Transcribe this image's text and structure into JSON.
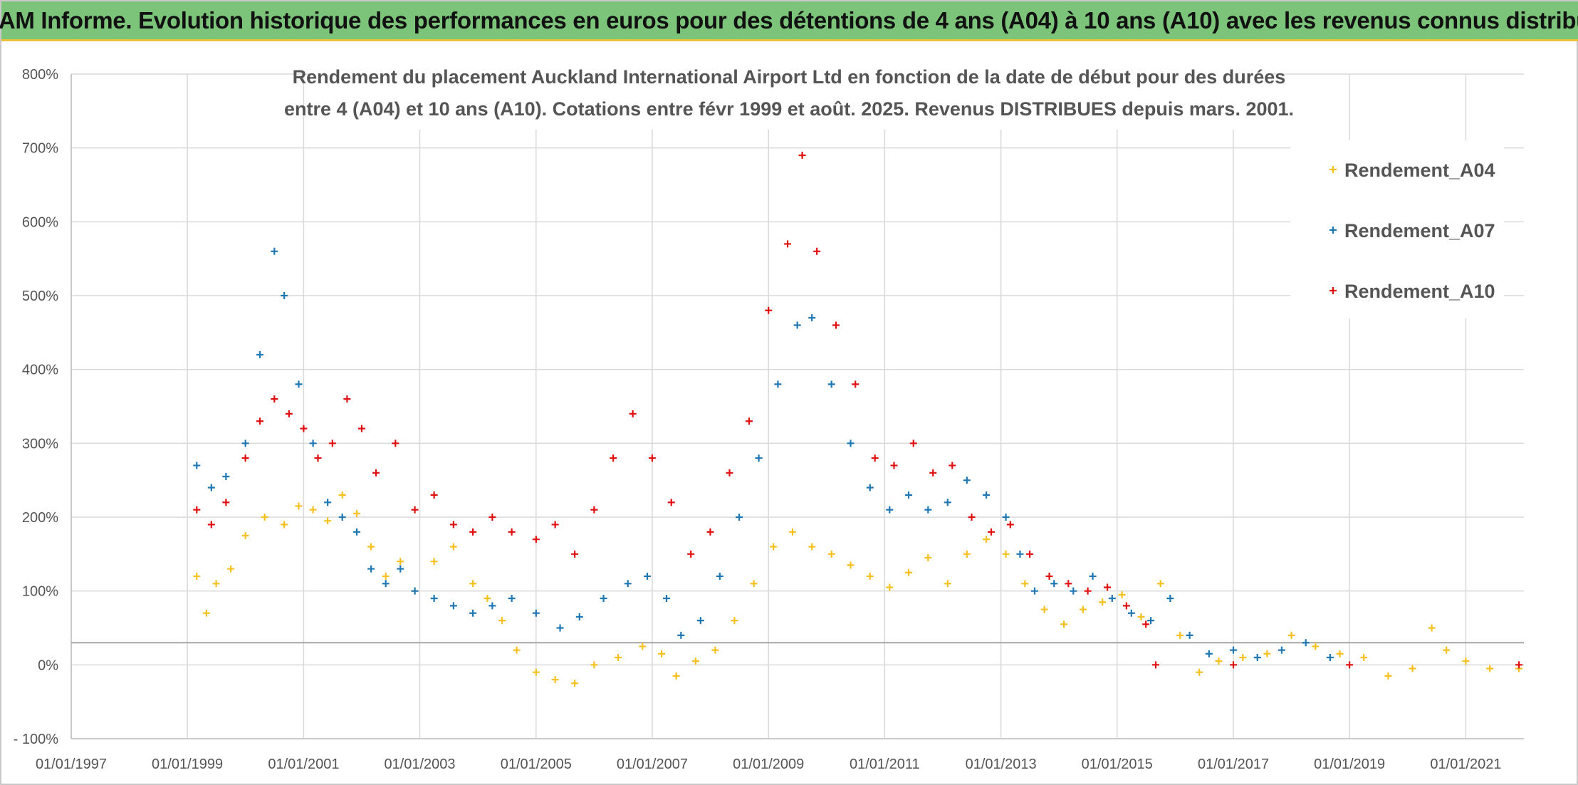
{
  "header": {
    "title": "ADAM Informe. Evolution historique des performances en euros pour des détentions de 4 ans (A04) à 10 ans (A10) avec les revenus connus distribués"
  },
  "chart_data": {
    "type": "scatter",
    "title_lines": [
      "Rendement du placement Auckland International Airport Ltd en fonction de la date de début pour des durées",
      "entre 4 (A04) et 10 ans (A10). Cotations entre févr 1999 et août. 2025. Revenus DISTRIBUES depuis mars. 2001."
    ],
    "xlabel": "",
    "ylabel": "",
    "x_ticks": [
      "01/01/1997",
      "01/01/1999",
      "01/01/2001",
      "01/01/2003",
      "01/01/2005",
      "01/01/2007",
      "01/01/2009",
      "01/01/2011",
      "01/01/2013",
      "01/01/2015",
      "01/01/2017",
      "01/01/2019",
      "01/01/2021"
    ],
    "y_ticks": [
      "- 100%",
      "0%",
      "100%",
      "200%",
      "300%",
      "400%",
      "500%",
      "600%",
      "700%",
      "800%"
    ],
    "xlim": [
      "1997-01-01",
      "2022-01-01"
    ],
    "ylim": [
      -100,
      800
    ],
    "reference_line_y": 30,
    "grid": true,
    "legend_position": "top-right",
    "series": [
      {
        "name": "Rendement_A04",
        "color": "#f5c020",
        "points": [
          [
            "1999-03-01",
            120
          ],
          [
            "1999-05-01",
            70
          ],
          [
            "1999-07-01",
            110
          ],
          [
            "1999-10-01",
            130
          ],
          [
            "2000-01-01",
            175
          ],
          [
            "2000-05-01",
            200
          ],
          [
            "2000-09-01",
            190
          ],
          [
            "2000-12-01",
            215
          ],
          [
            "2001-03-01",
            210
          ],
          [
            "2001-06-01",
            195
          ],
          [
            "2001-09-01",
            230
          ],
          [
            "2001-12-01",
            205
          ],
          [
            "2002-03-01",
            160
          ],
          [
            "2002-06-01",
            120
          ],
          [
            "2002-09-01",
            140
          ],
          [
            "2002-12-01",
            100
          ],
          [
            "2003-04-01",
            140
          ],
          [
            "2003-08-01",
            160
          ],
          [
            "2003-12-01",
            110
          ],
          [
            "2004-03-01",
            90
          ],
          [
            "2004-06-01",
            60
          ],
          [
            "2004-09-01",
            20
          ],
          [
            "2005-01-01",
            -10
          ],
          [
            "2005-05-01",
            -20
          ],
          [
            "2005-09-01",
            -25
          ],
          [
            "2006-01-01",
            0
          ],
          [
            "2006-06-01",
            10
          ],
          [
            "2006-11-01",
            25
          ],
          [
            "2007-03-01",
            15
          ],
          [
            "2007-06-01",
            -15
          ],
          [
            "2007-10-01",
            5
          ],
          [
            "2008-02-01",
            20
          ],
          [
            "2008-06-01",
            60
          ],
          [
            "2008-10-01",
            110
          ],
          [
            "2009-02-01",
            160
          ],
          [
            "2009-06-01",
            180
          ],
          [
            "2009-10-01",
            160
          ],
          [
            "2010-02-01",
            150
          ],
          [
            "2010-06-01",
            135
          ],
          [
            "2010-10-01",
            120
          ],
          [
            "2011-02-01",
            105
          ],
          [
            "2011-06-01",
            125
          ],
          [
            "2011-10-01",
            145
          ],
          [
            "2012-02-01",
            110
          ],
          [
            "2012-06-01",
            150
          ],
          [
            "2012-10-01",
            170
          ],
          [
            "2013-02-01",
            150
          ],
          [
            "2013-06-01",
            110
          ],
          [
            "2013-10-01",
            75
          ],
          [
            "2014-02-01",
            55
          ],
          [
            "2014-06-01",
            75
          ],
          [
            "2014-10-01",
            85
          ],
          [
            "2015-02-01",
            95
          ],
          [
            "2015-06-01",
            65
          ],
          [
            "2015-10-01",
            110
          ],
          [
            "2016-02-01",
            40
          ],
          [
            "2016-06-01",
            -10
          ],
          [
            "2016-10-01",
            5
          ],
          [
            "2017-03-01",
            10
          ],
          [
            "2017-08-01",
            15
          ],
          [
            "2018-01-01",
            40
          ],
          [
            "2018-06-01",
            25
          ],
          [
            "2018-11-01",
            15
          ],
          [
            "2019-04-01",
            10
          ],
          [
            "2019-09-01",
            -15
          ],
          [
            "2020-02-01",
            -5
          ],
          [
            "2020-06-01",
            50
          ],
          [
            "2020-09-01",
            20
          ],
          [
            "2021-01-01",
            5
          ],
          [
            "2021-06-01",
            -5
          ],
          [
            "2021-12-01",
            -5
          ]
        ]
      },
      {
        "name": "Rendement_A07",
        "color": "#1f77b4",
        "points": [
          [
            "1999-03-01",
            270
          ],
          [
            "1999-06-01",
            240
          ],
          [
            "1999-09-01",
            255
          ],
          [
            "2000-01-01",
            300
          ],
          [
            "2000-04-01",
            420
          ],
          [
            "2000-07-01",
            560
          ],
          [
            "2000-09-01",
            500
          ],
          [
            "2000-12-01",
            380
          ],
          [
            "2001-03-01",
            300
          ],
          [
            "2001-06-01",
            220
          ],
          [
            "2001-09-01",
            200
          ],
          [
            "2001-12-01",
            180
          ],
          [
            "2002-03-01",
            130
          ],
          [
            "2002-06-01",
            110
          ],
          [
            "2002-09-01",
            130
          ],
          [
            "2002-12-01",
            100
          ],
          [
            "2003-04-01",
            90
          ],
          [
            "2003-08-01",
            80
          ],
          [
            "2003-12-01",
            70
          ],
          [
            "2004-04-01",
            80
          ],
          [
            "2004-08-01",
            90
          ],
          [
            "2005-01-01",
            70
          ],
          [
            "2005-06-01",
            50
          ],
          [
            "2005-10-01",
            65
          ],
          [
            "2006-03-01",
            90
          ],
          [
            "2006-08-01",
            110
          ],
          [
            "2006-12-01",
            120
          ],
          [
            "2007-04-01",
            90
          ],
          [
            "2007-07-01",
            40
          ],
          [
            "2007-11-01",
            60
          ],
          [
            "2008-03-01",
            120
          ],
          [
            "2008-07-01",
            200
          ],
          [
            "2008-11-01",
            280
          ],
          [
            "2009-03-01",
            380
          ],
          [
            "2009-07-01",
            460
          ],
          [
            "2009-10-01",
            470
          ],
          [
            "2010-02-01",
            380
          ],
          [
            "2010-06-01",
            300
          ],
          [
            "2010-10-01",
            240
          ],
          [
            "2011-02-01",
            210
          ],
          [
            "2011-06-01",
            230
          ],
          [
            "2011-10-01",
            210
          ],
          [
            "2012-02-01",
            220
          ],
          [
            "2012-06-01",
            250
          ],
          [
            "2012-10-01",
            230
          ],
          [
            "2013-02-01",
            200
          ],
          [
            "2013-05-01",
            150
          ],
          [
            "2013-08-01",
            100
          ],
          [
            "2013-12-01",
            110
          ],
          [
            "2014-04-01",
            100
          ],
          [
            "2014-08-01",
            120
          ],
          [
            "2014-12-01",
            90
          ],
          [
            "2015-04-01",
            70
          ],
          [
            "2015-08-01",
            60
          ],
          [
            "2015-12-01",
            90
          ],
          [
            "2016-04-01",
            40
          ],
          [
            "2016-08-01",
            15
          ],
          [
            "2017-01-01",
            20
          ],
          [
            "2017-06-01",
            10
          ],
          [
            "2017-11-01",
            20
          ],
          [
            "2018-04-01",
            30
          ],
          [
            "2018-09-01",
            10
          ]
        ]
      },
      {
        "name": "Rendement_A10",
        "color": "#e01010",
        "points": [
          [
            "1999-03-01",
            210
          ],
          [
            "1999-06-01",
            190
          ],
          [
            "1999-09-01",
            220
          ],
          [
            "2000-01-01",
            280
          ],
          [
            "2000-04-01",
            330
          ],
          [
            "2000-07-01",
            360
          ],
          [
            "2000-10-01",
            340
          ],
          [
            "2001-01-01",
            320
          ],
          [
            "2001-04-01",
            280
          ],
          [
            "2001-07-01",
            300
          ],
          [
            "2001-10-01",
            360
          ],
          [
            "2002-01-01",
            320
          ],
          [
            "2002-04-01",
            260
          ],
          [
            "2002-08-01",
            300
          ],
          [
            "2002-12-01",
            210
          ],
          [
            "2003-04-01",
            230
          ],
          [
            "2003-08-01",
            190
          ],
          [
            "2003-12-01",
            180
          ],
          [
            "2004-04-01",
            200
          ],
          [
            "2004-08-01",
            180
          ],
          [
            "2005-01-01",
            170
          ],
          [
            "2005-05-01",
            190
          ],
          [
            "2005-09-01",
            150
          ],
          [
            "2006-01-01",
            210
          ],
          [
            "2006-05-01",
            280
          ],
          [
            "2006-09-01",
            340
          ],
          [
            "2007-01-01",
            280
          ],
          [
            "2007-05-01",
            220
          ],
          [
            "2007-09-01",
            150
          ],
          [
            "2008-01-01",
            180
          ],
          [
            "2008-05-01",
            260
          ],
          [
            "2008-09-01",
            330
          ],
          [
            "2009-01-01",
            480
          ],
          [
            "2009-05-01",
            570
          ],
          [
            "2009-08-01",
            690
          ],
          [
            "2009-11-01",
            560
          ],
          [
            "2010-03-01",
            460
          ],
          [
            "2010-07-01",
            380
          ],
          [
            "2010-11-01",
            280
          ],
          [
            "2011-03-01",
            270
          ],
          [
            "2011-07-01",
            300
          ],
          [
            "2011-11-01",
            260
          ],
          [
            "2012-03-01",
            270
          ],
          [
            "2012-07-01",
            200
          ],
          [
            "2012-11-01",
            180
          ],
          [
            "2013-03-01",
            190
          ],
          [
            "2013-07-01",
            150
          ],
          [
            "2013-11-01",
            120
          ],
          [
            "2014-03-01",
            110
          ],
          [
            "2014-07-01",
            100
          ],
          [
            "2014-11-01",
            105
          ],
          [
            "2015-03-01",
            80
          ],
          [
            "2015-07-01",
            55
          ],
          [
            "2015-09-01",
            0
          ],
          [
            "2017-01-01",
            0
          ],
          [
            "2019-01-01",
            0
          ],
          [
            "2021-12-01",
            0
          ]
        ]
      }
    ]
  }
}
